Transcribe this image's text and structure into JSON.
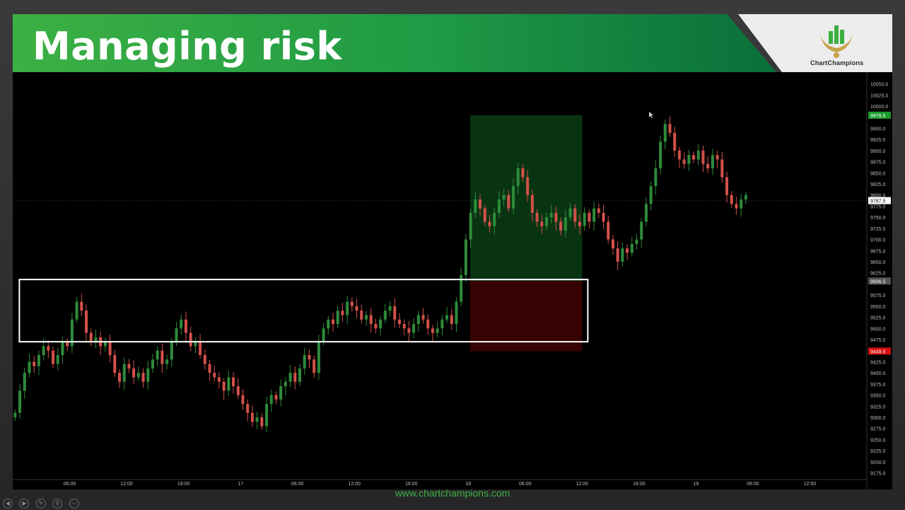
{
  "slide": {
    "title": "Managing risk",
    "logo_text": "ChartChampions",
    "website": "www.chartchampions.com"
  },
  "colors": {
    "banner_green": "#3cb043",
    "bull_candle": "#2e8b3a",
    "bear_candle": "#d2514a",
    "target_zone": "#0a3a14",
    "stop_zone": "#3a0202",
    "zone_outline": "#ffffff"
  },
  "controls": [
    "prev-icon",
    "next-icon",
    "pen-icon",
    "zoom-icon",
    "more-icon"
  ],
  "chart_data": {
    "type": "candlestick",
    "y_axis": {
      "ticks": [
        10050,
        10025,
        10000,
        9950,
        9925,
        9900,
        9875,
        9850,
        9825,
        9800,
        9775,
        9750,
        9725,
        9700,
        9675,
        9650,
        9625,
        9575,
        9550,
        9525,
        9500,
        9475,
        9425,
        9400,
        9375,
        9350,
        9325,
        9300,
        9275,
        9250,
        9225,
        9200,
        9175
      ],
      "tick_labels": [
        "10050.0",
        "10025.0",
        "10000.0",
        "9950.0",
        "9925.0",
        "9900.0",
        "9875.0",
        "9850.0",
        "9825.0",
        "9800.0",
        "9775.0",
        "9750.0",
        "9725.0",
        "9700.0",
        "9675.0",
        "9650.0",
        "9625.0",
        "9575.0",
        "9550.0",
        "9525.0",
        "9500.0",
        "9475.0",
        "9425.0",
        "9400.0",
        "9375.0",
        "9350.0",
        "9325.0",
        "9300.0",
        "9275.0",
        "9250.0",
        "9225.0",
        "9200.0",
        "9175.0"
      ],
      "range": [
        9160,
        10070
      ],
      "price_tags": [
        {
          "value": 9979.5,
          "label": "9979.5",
          "color": "#1a9a2a",
          "text_color": "#ffffff"
        },
        {
          "value": 9787.5,
          "label": "9787.5",
          "color": "#ffffff",
          "text_color": "#000000"
        },
        {
          "value": 9606.5,
          "label": "9606.5",
          "color": "#555555",
          "text_color": "#ffffff"
        },
        {
          "value": 9449.0,
          "label": "9449.0",
          "color": "#d61010",
          "text_color": "#ffffff"
        }
      ]
    },
    "x_axis": {
      "tick_labels": [
        "06:00",
        "12:00",
        "18:00",
        "17",
        "06:00",
        "12:00",
        "18:00",
        "18",
        "06:00",
        "12:00",
        "18:00",
        "19",
        "06:00",
        "12:00"
      ],
      "tick_hours": [
        6,
        12,
        18,
        24,
        30,
        36,
        42,
        48,
        54,
        60,
        66,
        72,
        78,
        84
      ],
      "range_hours": [
        0,
        90
      ]
    },
    "candles_hours_start": 0,
    "candles_interval_hours": 0.5,
    "closes": [
      9310,
      9360,
      9400,
      9425,
      9415,
      9440,
      9460,
      9450,
      9420,
      9440,
      9470,
      9460,
      9520,
      9560,
      9540,
      9490,
      9470,
      9480,
      9460,
      9470,
      9440,
      9400,
      9380,
      9420,
      9410,
      9390,
      9400,
      9380,
      9410,
      9430,
      9450,
      9420,
      9430,
      9470,
      9500,
      9520,
      9490,
      9460,
      9470,
      9440,
      9420,
      9400,
      9390,
      9380,
      9360,
      9390,
      9370,
      9350,
      9330,
      9310,
      9290,
      9300,
      9280,
      9330,
      9350,
      9340,
      9370,
      9380,
      9400,
      9380,
      9410,
      9440,
      9430,
      9400,
      9470,
      9500,
      9520,
      9510,
      9540,
      9530,
      9560,
      9550,
      9540,
      9520,
      9530,
      9510,
      9500,
      9520,
      9540,
      9550,
      9520,
      9510,
      9500,
      9490,
      9510,
      9530,
      9520,
      9500,
      9490,
      9500,
      9520,
      9530,
      9510,
      9560,
      9620,
      9700,
      9760,
      9790,
      9770,
      9740,
      9730,
      9760,
      9790,
      9800,
      9770,
      9820,
      9860,
      9840,
      9800,
      9760,
      9740,
      9730,
      9750,
      9760,
      9740,
      9720,
      9750,
      9770,
      9740,
      9730,
      9760,
      9740,
      9770,
      9760,
      9740,
      9700,
      9680,
      9650,
      9680,
      9670,
      9690,
      9700,
      9740,
      9780,
      9820,
      9860,
      9920,
      9960,
      9940,
      9900,
      9880,
      9870,
      9890,
      9880,
      9900,
      9870,
      9860,
      9890,
      9880,
      9840,
      9800,
      9780,
      9770,
      9790,
      9800
    ],
    "annotations": [
      {
        "type": "box",
        "label": "",
        "y_range": [
          9470,
          9610
        ],
        "x_hours": [
          0.7,
          60.6
        ],
        "style": "outline"
      },
      {
        "type": "box",
        "label": "",
        "y_range": [
          9606.5,
          9979.5
        ],
        "x_hours": [
          48.2,
          60.0
        ],
        "style": "target"
      },
      {
        "type": "box",
        "label": "",
        "y_range": [
          9449,
          9606.5
        ],
        "x_hours": [
          48.2,
          60.0
        ],
        "style": "stop"
      }
    ],
    "grid": false,
    "legend": "none"
  }
}
